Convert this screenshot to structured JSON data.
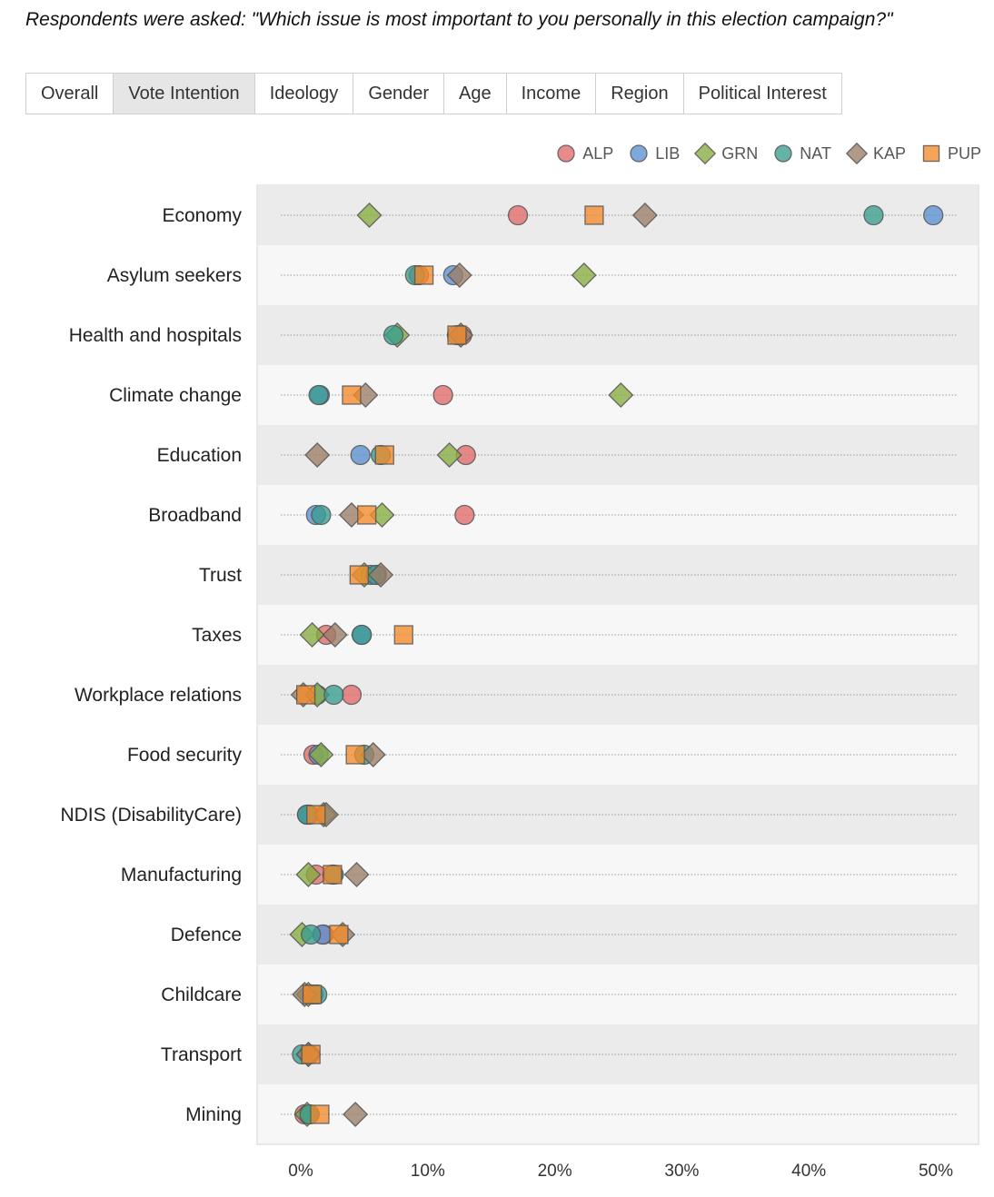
{
  "question": "Respondents were asked: \"Which issue is most important to you personally in this election campaign?\"",
  "tabs": [
    {
      "label": "Overall",
      "active": false
    },
    {
      "label": "Vote Intention",
      "active": true
    },
    {
      "label": "Ideology",
      "active": false
    },
    {
      "label": "Gender",
      "active": false
    },
    {
      "label": "Age",
      "active": false
    },
    {
      "label": "Income",
      "active": false
    },
    {
      "label": "Region",
      "active": false
    },
    {
      "label": "Political Interest",
      "active": false
    }
  ],
  "colors": {
    "ALP": "#e06a6a",
    "LIB": "#5b8fd1",
    "GRN": "#86ad3e",
    "NAT": "#3a9c8e",
    "KAP": "#9c7d66",
    "PUP": "#f28a2a"
  },
  "chart_data": {
    "type": "scatter",
    "title": "",
    "xlabel": "",
    "ylabel": "",
    "xlim": [
      -2,
      53
    ],
    "xticks": [
      0,
      10,
      20,
      30,
      40,
      50
    ],
    "xtick_labels": [
      "0%",
      "10%",
      "20%",
      "30%",
      "40%",
      "50%"
    ],
    "grid": "dotted row guides",
    "legend_position": "top-right",
    "categories": [
      "Economy",
      "Asylum seekers",
      "Health and hospitals",
      "Climate change",
      "Education",
      "Broadband",
      "Trust",
      "Taxes",
      "Workplace relations",
      "Food security",
      "NDIS (DisabilityCare)",
      "Manufacturing",
      "Defence",
      "Childcare",
      "Transport",
      "Mining"
    ],
    "series": [
      {
        "name": "ALP",
        "marker": "circle",
        "values": [
          17.1,
          9.3,
          12.7,
          11.2,
          13.0,
          12.9,
          6.0,
          2.0,
          4.0,
          1.0,
          0.7,
          1.2,
          1.8,
          0.8,
          0.6,
          0.3
        ]
      },
      {
        "name": "LIB",
        "marker": "circle",
        "values": [
          49.8,
          12.0,
          12.3,
          1.5,
          4.7,
          1.2,
          5.5,
          4.8,
          1.3,
          1.4,
          0.5,
          2.5,
          1.7,
          1.0,
          0.7,
          0.6
        ]
      },
      {
        "name": "GRN",
        "marker": "diamond",
        "values": [
          5.4,
          22.3,
          7.6,
          25.2,
          11.7,
          6.4,
          5.0,
          0.9,
          1.3,
          1.6,
          1.8,
          0.6,
          0.1,
          0.6,
          0.6,
          0.5
        ]
      },
      {
        "name": "NAT",
        "marker": "circle",
        "values": [
          45.1,
          9.0,
          7.3,
          1.4,
          6.3,
          1.6,
          5.9,
          4.8,
          2.6,
          5.0,
          0.5,
          2.6,
          0.8,
          1.3,
          0.1,
          0.7
        ]
      },
      {
        "name": "KAP",
        "marker": "diamond",
        "values": [
          27.1,
          12.5,
          12.6,
          5.1,
          1.3,
          4.0,
          6.3,
          2.7,
          0.2,
          5.7,
          2.0,
          4.4,
          3.3,
          0.3,
          0.6,
          4.3
        ]
      },
      {
        "name": "PUP",
        "marker": "square",
        "values": [
          23.1,
          9.7,
          12.3,
          4.0,
          6.6,
          5.2,
          4.6,
          8.1,
          0.4,
          4.3,
          1.2,
          2.5,
          3.0,
          0.9,
          0.8,
          1.5
        ]
      }
    ]
  }
}
